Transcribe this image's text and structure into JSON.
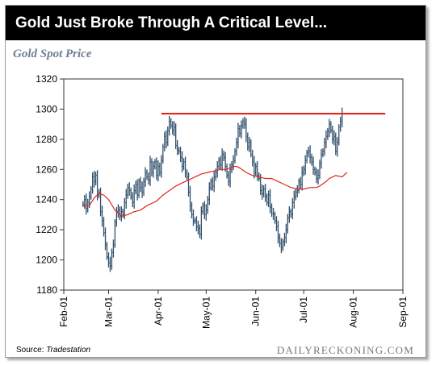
{
  "banner": {
    "title": "Gold Just Broke Through A Critical Level..."
  },
  "chart_title": "Gold Spot Price",
  "footer": {
    "source_label": "Source:",
    "source_name": "Tradestation",
    "brand": "DAILYRECKONING.COM"
  },
  "colors": {
    "banner_bg": "#000000",
    "candles": "#2f4f6b",
    "moving_average": "#e0261d",
    "resistance": "#e0261d",
    "subtitle": "#6d7f93"
  },
  "chart_data": {
    "type": "candlestick",
    "grid": false,
    "ylim": [
      1180,
      1320
    ],
    "y_ticks": [
      1180,
      1200,
      1220,
      1240,
      1260,
      1280,
      1300,
      1320
    ],
    "x_ticks": [
      {
        "label": "Feb-01",
        "day": 0
      },
      {
        "label": "Mar-01",
        "day": 28
      },
      {
        "label": "Apr-01",
        "day": 59
      },
      {
        "label": "May-01",
        "day": 89
      },
      {
        "label": "Jun-01",
        "day": 120
      },
      {
        "label": "Jul-01",
        "day": 150
      },
      {
        "label": "Aug-01",
        "day": 181
      },
      {
        "label": "Sep-01",
        "day": 212
      }
    ],
    "resistance_level": {
      "value": 1297,
      "from_day": 61,
      "to_day": 201
    },
    "price_series": [
      [
        12,
        1237
      ],
      [
        13,
        1240
      ],
      [
        14,
        1234
      ],
      [
        15,
        1238
      ],
      [
        16,
        1242
      ],
      [
        17,
        1247
      ],
      [
        18,
        1255
      ],
      [
        19,
        1252
      ],
      [
        20,
        1256
      ],
      [
        21,
        1243
      ],
      [
        22,
        1245
      ],
      [
        23,
        1232
      ],
      [
        24,
        1226
      ],
      [
        25,
        1218
      ],
      [
        26,
        1210
      ],
      [
        27,
        1202
      ],
      [
        28,
        1198
      ],
      [
        29,
        1196
      ],
      [
        30,
        1205
      ],
      [
        31,
        1210
      ],
      [
        32,
        1225
      ],
      [
        33,
        1232
      ],
      [
        34,
        1233
      ],
      [
        35,
        1229
      ],
      [
        36,
        1232
      ],
      [
        37,
        1230
      ],
      [
        38,
        1238
      ],
      [
        39,
        1243
      ],
      [
        40,
        1248
      ],
      [
        41,
        1246
      ],
      [
        42,
        1242
      ],
      [
        43,
        1238
      ],
      [
        44,
        1246
      ],
      [
        45,
        1250
      ],
      [
        46,
        1243
      ],
      [
        47,
        1252
      ],
      [
        48,
        1248
      ],
      [
        49,
        1245
      ],
      [
        50,
        1252
      ],
      [
        51,
        1258
      ],
      [
        52,
        1255
      ],
      [
        53,
        1253
      ],
      [
        54,
        1265
      ],
      [
        55,
        1258
      ],
      [
        56,
        1262
      ],
      [
        57,
        1265
      ],
      [
        58,
        1256
      ],
      [
        59,
        1262
      ],
      [
        60,
        1258
      ],
      [
        61,
        1266
      ],
      [
        62,
        1275
      ],
      [
        63,
        1282
      ],
      [
        64,
        1278
      ],
      [
        65,
        1286
      ],
      [
        66,
        1292
      ],
      [
        67,
        1289
      ],
      [
        68,
        1286
      ],
      [
        69,
        1288
      ],
      [
        70,
        1276
      ],
      [
        71,
        1273
      ],
      [
        72,
        1272
      ],
      [
        73,
        1268
      ],
      [
        74,
        1262
      ],
      [
        75,
        1265
      ],
      [
        76,
        1258
      ],
      [
        77,
        1255
      ],
      [
        78,
        1245
      ],
      [
        79,
        1236
      ],
      [
        80,
        1230
      ],
      [
        81,
        1226
      ],
      [
        82,
        1226
      ],
      [
        83,
        1222
      ],
      [
        84,
        1221
      ],
      [
        85,
        1217
      ],
      [
        86,
        1232
      ],
      [
        87,
        1236
      ],
      [
        88,
        1230
      ],
      [
        89,
        1233
      ],
      [
        90,
        1240
      ],
      [
        91,
        1248
      ],
      [
        92,
        1252
      ],
      [
        93,
        1249
      ],
      [
        94,
        1255
      ],
      [
        95,
        1258
      ],
      [
        96,
        1262
      ],
      [
        97,
        1266
      ],
      [
        98,
        1263
      ],
      [
        99,
        1270
      ],
      [
        100,
        1268
      ],
      [
        101,
        1262
      ],
      [
        102,
        1256
      ],
      [
        103,
        1252
      ],
      [
        104,
        1260
      ],
      [
        105,
        1263
      ],
      [
        106,
        1266
      ],
      [
        107,
        1272
      ],
      [
        108,
        1278
      ],
      [
        109,
        1287
      ],
      [
        110,
        1284
      ],
      [
        111,
        1289
      ],
      [
        112,
        1292
      ],
      [
        113,
        1290
      ],
      [
        114,
        1282
      ],
      [
        115,
        1275
      ],
      [
        116,
        1278
      ],
      [
        117,
        1270
      ],
      [
        118,
        1265
      ],
      [
        119,
        1258
      ],
      [
        120,
        1262
      ],
      [
        121,
        1256
      ],
      [
        122,
        1254
      ],
      [
        123,
        1246
      ],
      [
        124,
        1244
      ],
      [
        125,
        1247
      ],
      [
        126,
        1242
      ],
      [
        127,
        1238
      ],
      [
        128,
        1243
      ],
      [
        129,
        1235
      ],
      [
        130,
        1231
      ],
      [
        131,
        1230
      ],
      [
        132,
        1226
      ],
      [
        133,
        1222
      ],
      [
        134,
        1215
      ],
      [
        135,
        1211
      ],
      [
        136,
        1208
      ],
      [
        137,
        1212
      ],
      [
        138,
        1215
      ],
      [
        139,
        1220
      ],
      [
        140,
        1228
      ],
      [
        141,
        1232
      ],
      [
        142,
        1230
      ],
      [
        143,
        1238
      ],
      [
        144,
        1242
      ],
      [
        145,
        1245
      ],
      [
        146,
        1246
      ],
      [
        147,
        1252
      ],
      [
        148,
        1250
      ],
      [
        149,
        1258
      ],
      [
        150,
        1260
      ],
      [
        151,
        1266
      ],
      [
        152,
        1271
      ],
      [
        153,
        1272
      ],
      [
        154,
        1268
      ],
      [
        155,
        1265
      ],
      [
        156,
        1260
      ],
      [
        157,
        1258
      ],
      [
        158,
        1254
      ],
      [
        159,
        1256
      ],
      [
        160,
        1264
      ],
      [
        161,
        1270
      ],
      [
        162,
        1272
      ],
      [
        163,
        1278
      ],
      [
        164,
        1282
      ],
      [
        165,
        1285
      ],
      [
        166,
        1290
      ],
      [
        167,
        1286
      ],
      [
        168,
        1280
      ],
      [
        169,
        1282
      ],
      [
        170,
        1272
      ],
      [
        171,
        1278
      ],
      [
        172,
        1288
      ],
      [
        173,
        1292
      ],
      [
        174,
        1297
      ]
    ],
    "moving_average": [
      [
        12,
        1236
      ],
      [
        16,
        1236
      ],
      [
        19,
        1241
      ],
      [
        22,
        1244
      ],
      [
        25,
        1243
      ],
      [
        28,
        1240
      ],
      [
        32,
        1233
      ],
      [
        36,
        1229
      ],
      [
        40,
        1230
      ],
      [
        44,
        1232
      ],
      [
        48,
        1233
      ],
      [
        52,
        1236
      ],
      [
        56,
        1238
      ],
      [
        58,
        1239
      ],
      [
        62,
        1243
      ],
      [
        66,
        1246
      ],
      [
        70,
        1249
      ],
      [
        74,
        1251
      ],
      [
        78,
        1253
      ],
      [
        82,
        1255
      ],
      [
        86,
        1257
      ],
      [
        90,
        1258
      ],
      [
        94,
        1259
      ],
      [
        98,
        1260
      ],
      [
        102,
        1260
      ],
      [
        106,
        1262
      ],
      [
        108,
        1262
      ],
      [
        110,
        1261
      ],
      [
        114,
        1258
      ],
      [
        118,
        1256
      ],
      [
        122,
        1255
      ],
      [
        126,
        1254
      ],
      [
        130,
        1254
      ],
      [
        134,
        1252
      ],
      [
        138,
        1250
      ],
      [
        142,
        1248
      ],
      [
        146,
        1247
      ],
      [
        150,
        1247
      ],
      [
        154,
        1248
      ],
      [
        158,
        1248
      ],
      [
        160,
        1249
      ],
      [
        164,
        1252
      ],
      [
        166,
        1254
      ],
      [
        170,
        1256
      ],
      [
        174,
        1255
      ],
      [
        177,
        1258
      ]
    ]
  }
}
